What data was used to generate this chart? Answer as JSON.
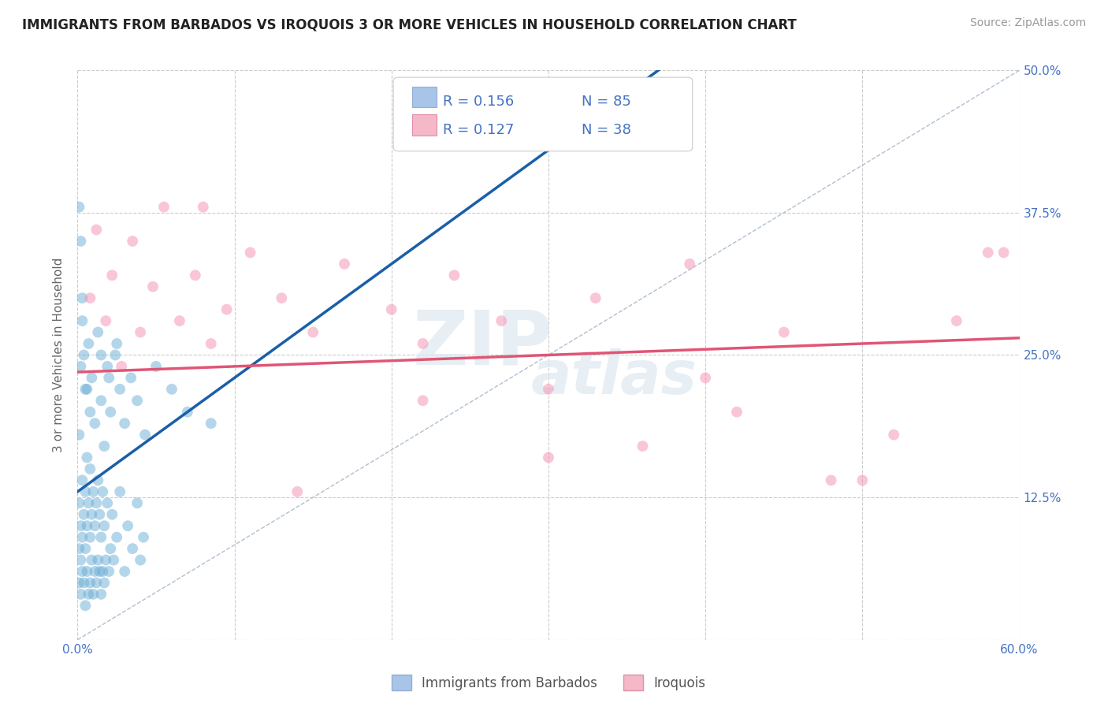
{
  "title": "IMMIGRANTS FROM BARBADOS VS IROQUOIS 3 OR MORE VEHICLES IN HOUSEHOLD CORRELATION CHART",
  "source": "Source: ZipAtlas.com",
  "ylabel": "3 or more Vehicles in Household",
  "xlim": [
    0.0,
    0.6
  ],
  "ylim": [
    0.0,
    0.5
  ],
  "xticks": [
    0.0,
    0.1,
    0.2,
    0.3,
    0.4,
    0.5,
    0.6
  ],
  "xticklabels": [
    "0.0%",
    "",
    "",
    "",
    "",
    "",
    "60.0%"
  ],
  "yticks": [
    0.0,
    0.125,
    0.25,
    0.375,
    0.5
  ],
  "yticklabels": [
    "",
    "12.5%",
    "25.0%",
    "37.5%",
    "50.0%"
  ],
  "R_barbados": 0.156,
  "N_barbados": 85,
  "R_iroquois": 0.127,
  "N_iroquois": 38,
  "barbados_color": "#6baed6",
  "iroquois_color": "#f48fb1",
  "barbados_legend_color": "#a8c4e8",
  "iroquois_legend_color": "#f4b8c8",
  "trend_barbados_color": "#1a5fa8",
  "trend_iroquois_color": "#e05575",
  "watermark_line1": "ZIP",
  "watermark_line2": "atlas",
  "background_color": "#ffffff",
  "grid_color": "#cccccc",
  "scatter_alpha": 0.5,
  "scatter_size": 100,
  "barbados_x": [
    0.001,
    0.001,
    0.001,
    0.002,
    0.002,
    0.002,
    0.003,
    0.003,
    0.003,
    0.004,
    0.004,
    0.005,
    0.005,
    0.005,
    0.006,
    0.006,
    0.006,
    0.007,
    0.007,
    0.008,
    0.008,
    0.008,
    0.009,
    0.009,
    0.01,
    0.01,
    0.011,
    0.011,
    0.012,
    0.012,
    0.013,
    0.013,
    0.014,
    0.014,
    0.015,
    0.015,
    0.016,
    0.016,
    0.017,
    0.017,
    0.018,
    0.019,
    0.02,
    0.021,
    0.022,
    0.023,
    0.025,
    0.027,
    0.03,
    0.032,
    0.035,
    0.038,
    0.04,
    0.042,
    0.008,
    0.006,
    0.004,
    0.003,
    0.002,
    0.001,
    0.001,
    0.002,
    0.003,
    0.005,
    0.007,
    0.009,
    0.011,
    0.013,
    0.015,
    0.017,
    0.019,
    0.021,
    0.024,
    0.027,
    0.03,
    0.034,
    0.038,
    0.043,
    0.05,
    0.06,
    0.07,
    0.085,
    0.015,
    0.02,
    0.025
  ],
  "barbados_y": [
    0.05,
    0.08,
    0.12,
    0.04,
    0.07,
    0.1,
    0.06,
    0.09,
    0.14,
    0.05,
    0.11,
    0.03,
    0.08,
    0.13,
    0.06,
    0.1,
    0.16,
    0.04,
    0.12,
    0.05,
    0.09,
    0.15,
    0.07,
    0.11,
    0.04,
    0.13,
    0.06,
    0.1,
    0.05,
    0.12,
    0.07,
    0.14,
    0.06,
    0.11,
    0.04,
    0.09,
    0.06,
    0.13,
    0.05,
    0.1,
    0.07,
    0.12,
    0.06,
    0.08,
    0.11,
    0.07,
    0.09,
    0.13,
    0.06,
    0.1,
    0.08,
    0.12,
    0.07,
    0.09,
    0.2,
    0.22,
    0.25,
    0.3,
    0.35,
    0.38,
    0.18,
    0.24,
    0.28,
    0.22,
    0.26,
    0.23,
    0.19,
    0.27,
    0.21,
    0.17,
    0.24,
    0.2,
    0.25,
    0.22,
    0.19,
    0.23,
    0.21,
    0.18,
    0.24,
    0.22,
    0.2,
    0.19,
    0.25,
    0.23,
    0.26
  ],
  "iroquois_x": [
    0.008,
    0.012,
    0.018,
    0.022,
    0.028,
    0.035,
    0.04,
    0.048,
    0.055,
    0.065,
    0.075,
    0.085,
    0.095,
    0.11,
    0.13,
    0.15,
    0.17,
    0.2,
    0.22,
    0.24,
    0.27,
    0.3,
    0.33,
    0.36,
    0.39,
    0.42,
    0.45,
    0.48,
    0.52,
    0.56,
    0.59,
    0.08,
    0.14,
    0.22,
    0.3,
    0.4,
    0.5,
    0.58
  ],
  "iroquois_y": [
    0.3,
    0.36,
    0.28,
    0.32,
    0.24,
    0.35,
    0.27,
    0.31,
    0.38,
    0.28,
    0.32,
    0.26,
    0.29,
    0.34,
    0.3,
    0.27,
    0.33,
    0.29,
    0.26,
    0.32,
    0.28,
    0.22,
    0.3,
    0.17,
    0.33,
    0.2,
    0.27,
    0.14,
    0.18,
    0.28,
    0.34,
    0.38,
    0.13,
    0.21,
    0.16,
    0.23,
    0.14,
    0.34
  ]
}
